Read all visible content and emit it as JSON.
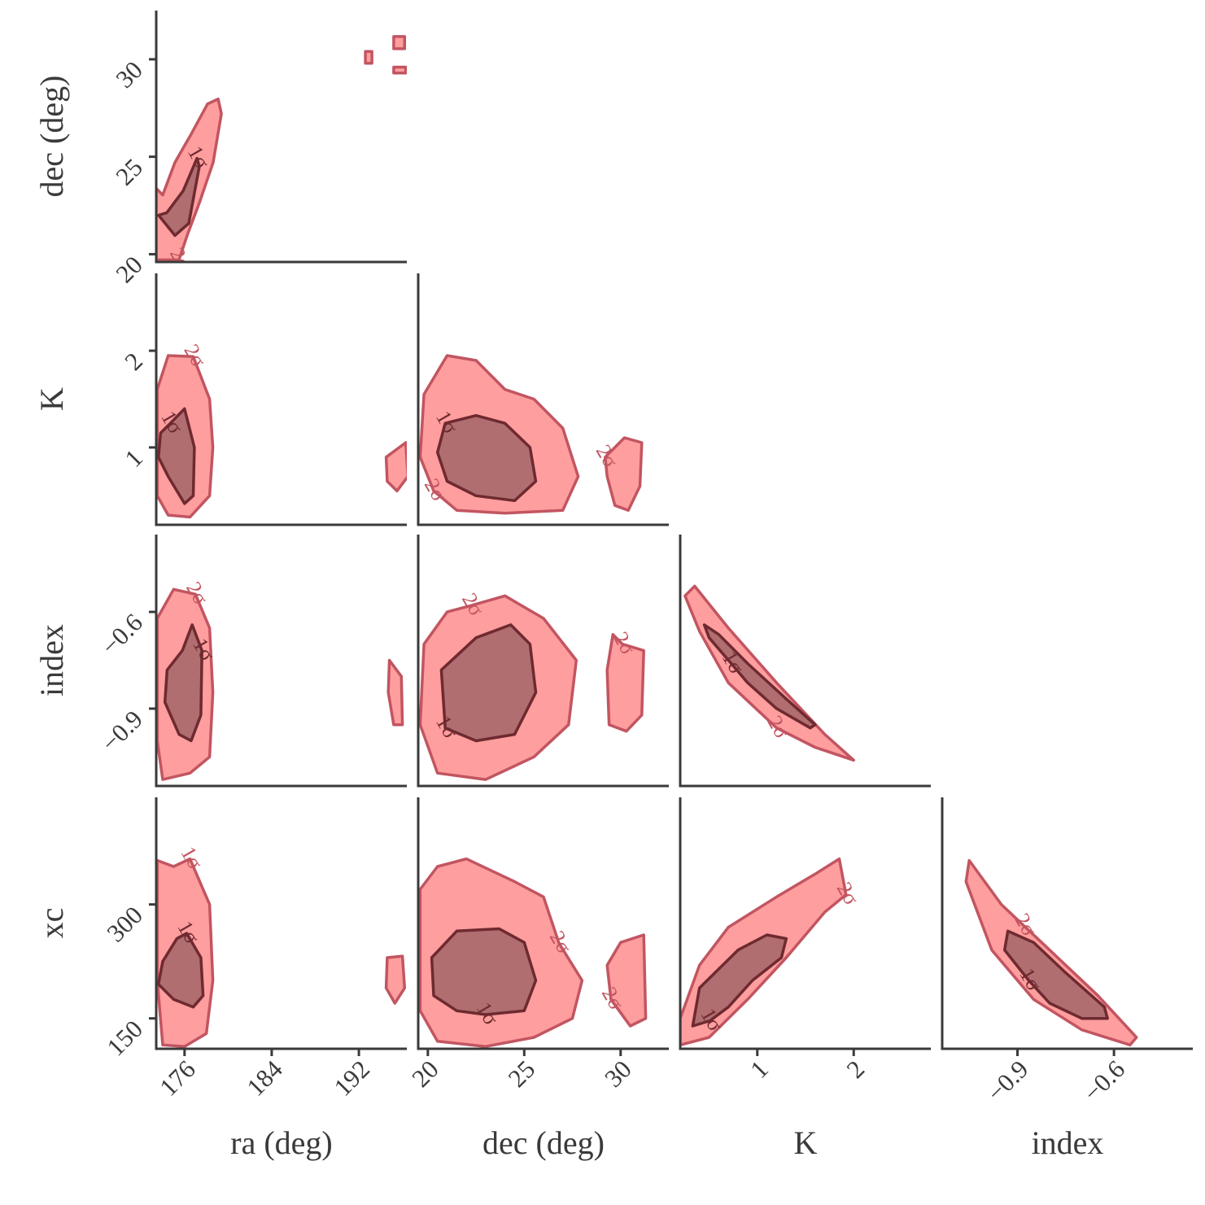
{
  "chart_data": {
    "type": "corner",
    "panels": [
      {
        "xlim": [
          173.4,
          196.4
        ],
        "ylim": [
          19.6,
          32.5
        ],
        "ylabel": "dec (deg)",
        "yticks": [
          20,
          25,
          30
        ],
        "regions": [
          {
            "label": "2σ",
            "color": "#ff9e9e",
            "edge_color": "#c25561",
            "x": [
              175.49,
              173.4,
              173.4,
              174.0,
              175.12,
              176.62,
              178.11,
              179.08,
              179.38,
              178.63,
              177.36,
              176.24
            ],
            "y": [
              19.71,
              19.71,
              23.38,
              23.04,
              24.71,
              26.17,
              27.71,
              27.96,
              27.21,
              24.71,
              22.63,
              20.96
            ]
          },
          {
            "color": "#ff9e9e",
            "edge_color": "#c25561",
            "x": [
              195.2,
              196.2,
              196.2,
              195.2
            ],
            "y": [
              31.17,
              31.17,
              30.54,
              30.54
            ]
          },
          {
            "color": "#ff9e9e",
            "edge_color": "#c25561",
            "x": [
              192.6,
              193.2,
              193.2,
              192.6
            ],
            "y": [
              30.4,
              30.4,
              29.8,
              29.8
            ]
          },
          {
            "color": "#ff9e9e",
            "edge_color": "#c25561",
            "x": [
              195.2,
              196.3,
              196.3,
              195.2
            ],
            "y": [
              29.6,
              29.6,
              29.3,
              29.3
            ]
          },
          {
            "label": "1σ",
            "color": "#b06e70",
            "edge_color": "#6e2a30",
            "x": [
              177.14,
              175.87,
              174.37,
              173.62,
              175.12,
              176.39,
              177.36
            ],
            "y": [
              24.92,
              23.25,
              22.13,
              22.0,
              20.96,
              21.58,
              24.5
            ]
          }
        ]
      },
      {
        "xlim": [
          173.4,
          196.4
        ],
        "ylim": [
          0.2,
          2.8
        ],
        "ylabel": "K",
        "yticks": [
          1,
          2
        ],
        "regions": [
          {
            "label": "2σ",
            "color": "#ff9e9e",
            "edge_color": "#c25561",
            "x": [
              176.8,
              178.3,
              178.6,
              178.3,
              176.5,
              174.5,
              173.5,
              173.5,
              174.5
            ],
            "y": [
              1.94,
              1.5,
              1.0,
              0.5,
              0.28,
              0.3,
              0.5,
              1.6,
              1.95
            ]
          },
          {
            "color": "#ff9e9e",
            "edge_color": "#c25561",
            "x": [
              194.5,
              196.3,
              196.5,
              195.5,
              194.6
            ],
            "y": [
              0.9,
              1.05,
              0.7,
              0.55,
              0.65
            ]
          },
          {
            "label": "1σ",
            "color": "#b06e70",
            "edge_color": "#6e2a30",
            "x": [
              174.7,
              176,
              176.9,
              176.8,
              176,
              174.5,
              173.6,
              173.8
            ],
            "y": [
              1.25,
              1.4,
              1.0,
              0.5,
              0.42,
              0.7,
              0.9,
              1.15
            ]
          }
        ]
      },
      {
        "xlim": [
          19.5,
          32.5
        ],
        "ylim": [
          0.2,
          2.8
        ],
        "regions": [
          {
            "label": "2σ",
            "color": "#ff9e9e",
            "edge_color": "#c25561",
            "x": [
              20.3,
              19.6,
              19.8,
              21,
              22.5,
              24,
              25.5,
              27,
              27.8,
              27,
              24,
              21.5
            ],
            "y": [
              0.55,
              0.9,
              1.55,
              1.95,
              1.9,
              1.6,
              1.5,
              1.2,
              0.7,
              0.35,
              0.32,
              0.35
            ]
          },
          {
            "label": "2σ",
            "color": "#ff9e9e",
            "edge_color": "#c25561",
            "x": [
              29.2,
              30.2,
              31.1,
              31,
              30.4,
              29.7,
              29.3
            ],
            "y": [
              0.9,
              1.1,
              1.05,
              0.6,
              0.35,
              0.4,
              0.7
            ]
          },
          {
            "label": "1σ",
            "color": "#b06e70",
            "edge_color": "#6e2a30",
            "x": [
              20.9,
              22.5,
              24,
              25.3,
              25.6,
              24.5,
              22.5,
              21,
              20.5
            ],
            "y": [
              1.25,
              1.33,
              1.25,
              1.0,
              0.65,
              0.45,
              0.5,
              0.65,
              0.95
            ]
          }
        ]
      },
      {
        "xlim": [
          173.4,
          196.4
        ],
        "ylim": [
          -1.14,
          -0.36
        ],
        "ylabel": "index",
        "yticks": [
          {
            "value": -0.9,
            "label": "−0.9"
          },
          {
            "value": -0.6,
            "label": "−0.6"
          }
        ],
        "regions": [
          {
            "label": "2σ",
            "color": "#ff9e9e",
            "edge_color": "#c25561",
            "x": [
              177,
              178.3,
              178.6,
              178.3,
              176.5,
              174,
              173.5,
              173.5,
              175
            ],
            "y": [
              -0.545,
              -0.65,
              -0.85,
              -1.05,
              -1.1,
              -1.12,
              -1.0,
              -0.62,
              -0.53
            ]
          },
          {
            "color": "#ff9e9e",
            "edge_color": "#c25561",
            "x": [
              194.8,
              195.9,
              196,
              195.2,
              194.7
            ],
            "y": [
              -0.75,
              -0.8,
              -0.95,
              -0.95,
              -0.85
            ]
          },
          {
            "label": "1σ",
            "color": "#b06e70",
            "edge_color": "#6e2a30",
            "x": [
              177.6,
              177.5,
              176.6,
              175.5,
              174.2,
              174.4,
              175.8,
              176.7
            ],
            "y": [
              -0.72,
              -0.92,
              -1.0,
              -0.98,
              -0.88,
              -0.78,
              -0.72,
              -0.64
            ]
          }
        ]
      },
      {
        "xlim": [
          19.5,
          32.5
        ],
        "ylim": [
          -1.14,
          -0.36
        ],
        "regions": [
          {
            "label": "2σ",
            "color": "#ff9e9e",
            "edge_color": "#c25561",
            "x": [
              22.25,
              24,
              26,
              27.7,
              27.3,
              25.5,
              23,
              20.5,
              19.6,
              19.8,
              21
            ],
            "y": [
              -0.58,
              -0.55,
              -0.62,
              -0.75,
              -0.95,
              -1.05,
              -1.12,
              -1.1,
              -0.95,
              -0.7,
              -0.6
            ]
          },
          {
            "label": "2σ",
            "color": "#ff9e9e",
            "edge_color": "#c25561",
            "x": [
              30.1,
              31.2,
              31.1,
              30.3,
              29.4,
              29.3,
              29.6
            ],
            "y": [
              -0.7,
              -0.72,
              -0.92,
              -0.97,
              -0.95,
              -0.78,
              -0.67
            ]
          },
          {
            "label": "1σ",
            "color": "#b06e70",
            "edge_color": "#6e2a30",
            "x": [
              20.9,
              22.5,
              24.5,
              25.6,
              25.3,
              24.3,
              22.5,
              20.7
            ],
            "y": [
              -0.96,
              -1.0,
              -0.98,
              -0.85,
              -0.7,
              -0.64,
              -0.68,
              -0.78
            ]
          }
        ]
      },
      {
        "xlim": [
          0.2,
          2.8
        ],
        "ylim": [
          -1.14,
          -0.36
        ],
        "regions": [
          {
            "label": "2σ",
            "color": "#ff9e9e",
            "edge_color": "#c25561",
            "x": [
              1.2,
              0.7,
              0.4,
              0.25,
              0.35,
              0.7,
              1.2,
              1.7,
              2.0,
              1.6
            ],
            "y": [
              -0.96,
              -0.82,
              -0.66,
              -0.55,
              -0.52,
              -0.65,
              -0.82,
              -0.98,
              -1.06,
              -1.02
            ]
          },
          {
            "label": "1σ",
            "color": "#b06e70",
            "edge_color": "#6e2a30",
            "x": [
              0.73,
              0.5,
              0.45,
              0.6,
              0.9,
              1.3,
              1.6,
              1.55,
              1.2,
              0.9
            ],
            "y": [
              -0.76,
              -0.68,
              -0.64,
              -0.67,
              -0.76,
              -0.87,
              -0.95,
              -0.96,
              -0.9,
              -0.82
            ]
          }
        ]
      },
      {
        "xlim": [
          173.4,
          196.4
        ],
        "ylim": [
          110,
          441
        ],
        "ylabel": "xc",
        "xlabel": "ra (deg)",
        "yticks": [
          150,
          300
        ],
        "xticks": [
          176,
          184,
          192
        ],
        "regions": [
          {
            "label": "1σ",
            "color": "#ff9e9e",
            "edge_color": "#c25561",
            "x": [
              176.5,
              178.3,
              178.6,
              178,
              176,
              174,
              173.5,
              173.5,
              175
            ],
            "y": [
              360,
              300,
              200,
              130,
              113,
              115,
              200,
              358,
              350
            ]
          },
          {
            "color": "#ff9e9e",
            "edge_color": "#c25561",
            "x": [
              194.6,
              196,
              196.2,
              195.3,
              194.5
            ],
            "y": [
              230,
              232,
              190,
              170,
              190
            ]
          },
          {
            "label": "1σ",
            "color": "#b06e70",
            "edge_color": "#6e2a30",
            "x": [
              176.2,
              177.5,
              177.7,
              176.8,
              175,
              173.6,
              174,
              175.3
            ],
            "y": [
              262,
              230,
              180,
              165,
              175,
              195,
              225,
              255
            ]
          }
        ]
      },
      {
        "xlim": [
          19.5,
          32.5
        ],
        "ylim": [
          110,
          441
        ],
        "xlabel": "dec (deg)",
        "xticks": [
          20,
          25,
          30
        ],
        "regions": [
          {
            "label": "2σ",
            "color": "#ff9e9e",
            "edge_color": "#c25561",
            "x": [
              26.8,
              28,
              27.5,
              25.5,
              23,
              20.5,
              19.6,
              19.6,
              20.5,
              22,
              24.5,
              26
            ],
            "y": [
              249,
              200,
              150,
              125,
              113,
              120,
              160,
              320,
              350,
              360,
              330,
              310
            ]
          },
          {
            "label": "2σ",
            "color": "#ff9e9e",
            "edge_color": "#c25561",
            "x": [
              29.5,
              29.3,
              30,
              31.2,
              31.3,
              30.5
            ],
            "y": [
              175,
              220,
              250,
              260,
              150,
              140
            ]
          },
          {
            "label": "1σ",
            "color": "#b06e70",
            "edge_color": "#6e2a30",
            "x": [
              23,
              25,
              25.6,
              25,
              23.7,
              21.5,
              20.2,
              20.3,
              21.5
            ],
            "y": [
              155,
              160,
              200,
              250,
              268,
              265,
              230,
              180,
              160
            ]
          }
        ]
      },
      {
        "xlim": [
          0.2,
          2.8
        ],
        "ylim": [
          110,
          441
        ],
        "xlabel": "K",
        "xticks": [
          1,
          2
        ],
        "regions": [
          {
            "label": "2σ",
            "color": "#ff9e9e",
            "edge_color": "#c25561",
            "x": [
              1.92,
              1.85,
              1.6,
              1.2,
              0.7,
              0.4,
              0.2,
              0.2,
              0.5,
              0.9,
              1.3,
              1.7
            ],
            "y": [
              313,
              360,
              340,
              310,
              270,
              220,
              150,
              115,
              125,
              175,
              230,
              290
            ]
          },
          {
            "label": "1σ",
            "color": "#b06e70",
            "edge_color": "#6e2a30",
            "x": [
              0.51,
              0.33,
              0.4,
              0.8,
              1.1,
              1.3,
              1.25,
              0.95,
              0.7
            ],
            "y": [
              147,
              140,
              190,
              240,
              260,
              255,
              230,
              200,
              165
            ]
          }
        ]
      },
      {
        "xlim": [
          -1.134,
          -0.355
        ],
        "ylim": [
          110,
          441
        ],
        "xlabel": "index",
        "xticks": [
          {
            "value": -0.9,
            "label": "−0.9"
          },
          {
            "value": -0.6,
            "label": "−0.6"
          }
        ],
        "regions": [
          {
            "label": "2σ",
            "color": "#ff9e9e",
            "edge_color": "#c25561",
            "x": [
              -0.88,
              -0.8,
              -0.65,
              -0.53,
              -0.55,
              -0.7,
              -0.85,
              -0.98,
              -1.06,
              -1.05,
              -0.95
            ],
            "y": [
              272,
              240,
              180,
              125,
              115,
              135,
              175,
              240,
              330,
              358,
              300
            ]
          },
          {
            "label": "1σ",
            "color": "#b06e70",
            "edge_color": "#6e2a30",
            "x": [
              -0.865,
              -0.94,
              -0.93,
              -0.85,
              -0.75,
              -0.63,
              -0.62,
              -0.7,
              -0.8
            ],
            "y": [
              200,
              240,
              265,
              250,
              210,
              165,
              150,
              150,
              170
            ]
          }
        ]
      }
    ]
  }
}
